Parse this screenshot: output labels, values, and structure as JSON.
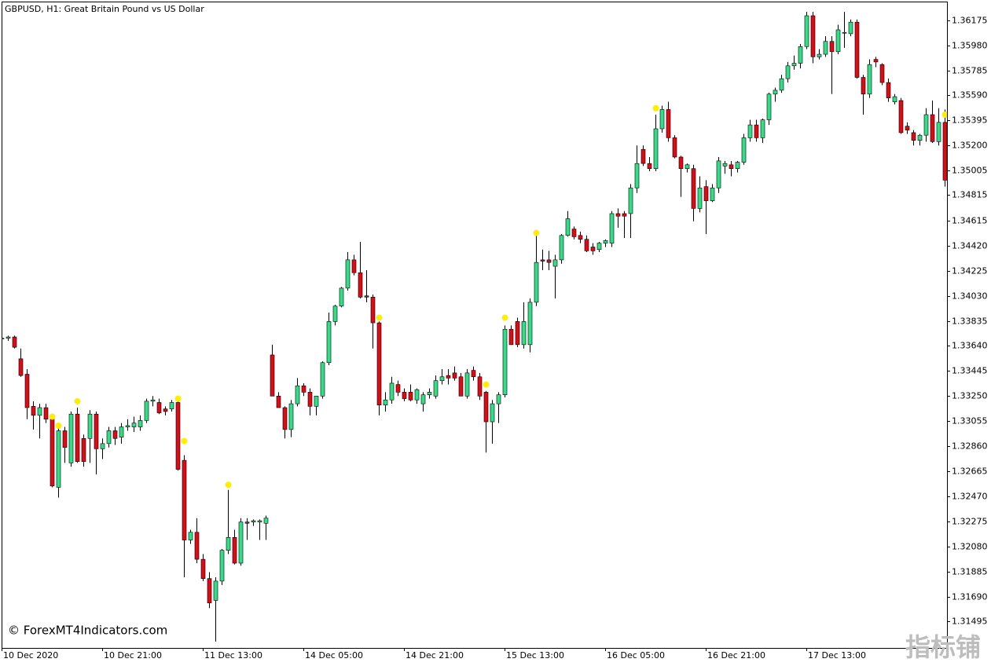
{
  "chart_data": {
    "type": "candlestick",
    "title": "GBPUSD, H1:  Great Britain Pound vs US Dollar",
    "copyright": "© ForexMT4Indicators.com",
    "watermark": "指标铺",
    "up_color": "#3cd98a",
    "down_color": "#d0101a",
    "wick_color": "#000000",
    "marker_color": "#ffee00",
    "ylim": [
      1.3129,
      1.3632
    ],
    "yticks": [
      1.36175,
      {
        "value": 1.3598,
        "label": "1.35980"
      },
      1.35785,
      {
        "value": 1.3559,
        "label": "1.35590"
      },
      1.35395,
      {
        "value": 1.352,
        "label": "1.35200"
      },
      1.35005,
      1.34815,
      1.34615,
      {
        "value": 1.3442,
        "label": "1.34420"
      },
      1.34225,
      {
        "value": 1.3403,
        "label": "1.34030"
      },
      1.33835,
      {
        "value": 1.3364,
        "label": "1.33640"
      },
      1.33445,
      {
        "value": 1.3325,
        "label": "1.33250"
      },
      1.33055,
      {
        "value": 1.3286,
        "label": "1.32860"
      },
      1.32665,
      {
        "value": 1.3247,
        "label": "1.32470"
      },
      1.32275,
      {
        "value": 1.3208,
        "label": "1.32080"
      },
      1.31885,
      {
        "value": 1.3169,
        "label": "1.31690"
      },
      1.31495
    ],
    "categories": [
      "10 Dec 2020",
      null,
      null,
      null,
      null,
      null,
      null,
      null,
      null,
      null,
      null,
      null,
      null,
      null,
      null,
      null,
      "10 Dec 21:00",
      null,
      null,
      null,
      null,
      null,
      null,
      null,
      null,
      null,
      null,
      null,
      null,
      null,
      null,
      null,
      "11 Dec 13:00",
      null,
      null,
      null,
      null,
      null,
      null,
      null,
      null,
      null,
      null,
      null,
      null,
      null,
      null,
      null,
      "14 Dec 05:00",
      null,
      null,
      null,
      null,
      null,
      null,
      null,
      null,
      null,
      null,
      null,
      null,
      null,
      null,
      null,
      "14 Dec 21:00",
      null,
      null,
      null,
      null,
      null,
      null,
      null,
      null,
      null,
      null,
      null,
      null,
      null,
      null,
      null,
      "15 Dec 13:00",
      null,
      null,
      null,
      null,
      null,
      null,
      null,
      null,
      null,
      null,
      null,
      null,
      null,
      null,
      null,
      "16 Dec 05:00",
      null,
      null,
      null,
      null,
      null,
      null,
      null,
      null,
      null,
      null,
      null,
      null,
      null,
      null,
      null,
      "16 Dec 21:00",
      null,
      null,
      null,
      null,
      null,
      null,
      null,
      null,
      null,
      null,
      null,
      null,
      null,
      null,
      null,
      "17 Dec 13:00",
      null,
      null,
      null,
      null,
      null,
      null,
      null,
      null,
      null,
      null,
      null,
      null,
      null,
      null,
      null,
      null,
      null,
      null,
      null,
      null,
      null,
      null
    ],
    "open": [
      1.337,
      1.337,
      1.3371,
      1.3354,
      1.3342,
      1.3317,
      1.331,
      1.3316,
      1.3307,
      1.3254,
      1.3298,
      1.3273,
      1.3311,
      1.3292,
      1.3292,
      1.3311,
      1.3284,
      1.3288,
      1.3298,
      1.3293,
      1.3301,
      1.3301,
      1.3301,
      1.3306,
      1.3321,
      1.332,
      1.3315,
      1.3315,
      1.332,
      1.3275,
      1.3213,
      1.3219,
      1.3198,
      1.3183,
      1.3166,
      1.3181,
      1.3205,
      1.3215,
      1.3195,
      1.3227,
      1.3227,
      1.3227,
      1.3226,
      1.3357,
      1.3325,
      1.3316,
      1.3299,
      1.3319,
      1.3333,
      1.3328,
      1.3317,
      1.3325,
      1.3351,
      1.3383,
      1.3395,
      1.3409,
      1.3431,
      1.3421,
      1.3403,
      1.3402,
      1.3382,
      1.3318,
      1.3322,
      1.3334,
      1.3328,
      1.3328,
      1.3322,
      1.3319,
      1.3326,
      1.3325,
      1.3337,
      1.3341,
      1.3343,
      1.334,
      1.3325,
      1.3345,
      1.334,
      1.3328,
      1.3305,
      1.3319,
      1.3326,
      1.3377,
      1.3383,
      1.3365,
      1.3365,
      1.3398,
      1.3431,
      1.3431,
      1.3426,
      1.3431,
      1.345,
      1.3455,
      1.345,
      1.3447,
      1.3441,
      1.3439,
      1.3444,
      1.3444,
      1.3467,
      1.3467,
      1.3467,
      1.3487,
      1.3517,
      1.3506,
      1.3502,
      1.3533,
      1.3548,
      1.3526,
      1.3511,
      1.3502,
      1.3502,
      1.3471,
      1.3488,
      1.3477,
      1.3487,
      1.3504,
      1.3505,
      1.3502,
      1.3507,
      1.3526,
      1.3536,
      1.3526,
      1.354,
      1.356,
      1.3563,
      1.3572,
      1.3582,
      1.3584,
      1.3597,
      1.3621,
      1.3589,
      1.3591,
      1.3601,
      1.3593,
      1.3608,
      1.3607,
      1.3616,
      1.3573,
      1.356,
      1.3587,
      1.3583,
      1.3569,
      1.3554,
      1.3555,
      1.3535,
      1.353,
      1.3524,
      1.3528,
      1.3544,
      1.3523,
      1.3538
    ],
    "high": [
      1.3371,
      1.3372,
      1.3372,
      1.3362,
      1.3346,
      1.3321,
      1.3319,
      1.3319,
      1.331,
      1.3301,
      1.3301,
      1.3313,
      1.3316,
      1.3295,
      1.3314,
      1.3313,
      1.3292,
      1.3301,
      1.3301,
      1.3304,
      1.3307,
      1.3309,
      1.331,
      1.3323,
      1.3325,
      1.3323,
      1.3317,
      1.3322,
      1.3325,
      1.3279,
      1.3221,
      1.323,
      1.3202,
      1.3188,
      1.3184,
      1.3206,
      1.3252,
      1.3221,
      1.323,
      1.323,
      1.3229,
      1.3229,
      1.3232,
      1.3365,
      1.3328,
      1.3317,
      1.3322,
      1.3339,
      1.3335,
      1.3331,
      1.3325,
      1.3352,
      1.339,
      1.3396,
      1.341,
      1.3437,
      1.3435,
      1.3445,
      1.3423,
      1.3404,
      1.3383,
      1.3328,
      1.334,
      1.3337,
      1.3331,
      1.3334,
      1.3331,
      1.3328,
      1.3331,
      1.3341,
      1.3346,
      1.3346,
      1.3348,
      1.3343,
      1.3346,
      1.3348,
      1.3343,
      1.3329,
      1.3322,
      1.3328,
      1.338,
      1.338,
      1.3386,
      1.3398,
      1.3401,
      1.345,
      1.3439,
      1.3438,
      1.3435,
      1.3451,
      1.3469,
      1.3457,
      1.3453,
      1.345,
      1.3444,
      1.3445,
      1.3447,
      1.3469,
      1.3471,
      1.3469,
      1.349,
      1.352,
      1.352,
      1.3511,
      1.3544,
      1.3551,
      1.3554,
      1.3528,
      1.3512,
      1.3506,
      1.3505,
      1.3496,
      1.3493,
      1.349,
      1.3511,
      1.3508,
      1.3508,
      1.3508,
      1.3529,
      1.354,
      1.354,
      1.3541,
      1.3561,
      1.3565,
      1.3575,
      1.3585,
      1.359,
      1.3599,
      1.3624,
      1.3624,
      1.3595,
      1.3605,
      1.3605,
      1.3614,
      1.3624,
      1.3618,
      1.3618,
      1.3575,
      1.3587,
      1.3589,
      1.3584,
      1.3572,
      1.356,
      1.3557,
      1.3538,
      1.3532,
      1.3529,
      1.3549,
      1.3555,
      1.3549,
      1.3548
    ],
    "low": [
      1.3368,
      1.3368,
      1.3362,
      1.334,
      1.3307,
      1.3299,
      1.3292,
      1.3304,
      1.3254,
      1.3246,
      1.3273,
      1.327,
      1.3273,
      1.327,
      1.3273,
      1.3264,
      1.3276,
      1.3285,
      1.3287,
      1.3288,
      1.3298,
      1.3297,
      1.3298,
      1.3304,
      1.3317,
      1.3311,
      1.331,
      1.3313,
      1.3267,
      1.3184,
      1.321,
      1.3195,
      1.3181,
      1.316,
      1.3134,
      1.3178,
      1.3202,
      1.3194,
      1.3193,
      1.3213,
      1.3224,
      1.3213,
      1.3213,
      1.3325,
      1.3316,
      1.3292,
      1.3293,
      1.3317,
      1.3325,
      1.331,
      1.331,
      1.3323,
      1.3349,
      1.338,
      1.3394,
      1.3407,
      1.3419,
      1.3401,
      1.3398,
      1.3362,
      1.331,
      1.3313,
      1.3319,
      1.3325,
      1.3321,
      1.3321,
      1.3319,
      1.3313,
      1.3323,
      1.3323,
      1.3334,
      1.3334,
      1.3337,
      1.3325,
      1.3323,
      1.3337,
      1.3322,
      1.3281,
      1.3288,
      1.3304,
      1.3324,
      1.3365,
      1.3363,
      1.3362,
      1.3359,
      1.3395,
      1.3423,
      1.3423,
      1.3401,
      1.3428,
      1.3449,
      1.3447,
      1.3444,
      1.3437,
      1.3435,
      1.3437,
      1.3441,
      1.3441,
      1.3456,
      1.3448,
      1.3448,
      1.3483,
      1.3504,
      1.35,
      1.35,
      1.353,
      1.3523,
      1.351,
      1.348,
      1.3499,
      1.3461,
      1.3468,
      1.3451,
      1.3476,
      1.3483,
      1.3498,
      1.3496,
      1.3499,
      1.3505,
      1.3523,
      1.3523,
      1.3522,
      1.3536,
      1.3554,
      1.3561,
      1.3569,
      1.3579,
      1.358,
      1.3595,
      1.3584,
      1.3587,
      1.3589,
      1.356,
      1.3591,
      1.3596,
      1.3605,
      1.3572,
      1.3544,
      1.3557,
      1.3581,
      1.3567,
      1.3554,
      1.3552,
      1.3529,
      1.3529,
      1.352,
      1.352,
      1.3523,
      1.3522,
      1.352,
      1.3488
    ],
    "close": [
      1.337,
      1.3371,
      1.3363,
      1.3341,
      1.3316,
      1.331,
      1.3316,
      1.3307,
      1.3255,
      1.3298,
      1.3285,
      1.3311,
      1.3274,
      1.3274,
      1.3311,
      1.3284,
      1.3288,
      1.3298,
      1.3292,
      1.3301,
      1.3302,
      1.3304,
      1.3306,
      1.3321,
      1.3322,
      1.3312,
      1.3313,
      1.332,
      1.3268,
      1.3213,
      1.3219,
      1.3198,
      1.3183,
      1.3164,
      1.3181,
      1.3205,
      1.3215,
      1.3195,
      1.3227,
      1.3226,
      1.3228,
      1.3228,
      1.323,
      1.3325,
      1.3316,
      1.3299,
      1.3319,
      1.3333,
      1.3328,
      1.3317,
      1.3325,
      1.3351,
      1.3383,
      1.3395,
      1.3409,
      1.3431,
      1.3421,
      1.3402,
      1.3402,
      1.3382,
      1.3318,
      1.3322,
      1.3335,
      1.3328,
      1.3323,
      1.3322,
      1.333,
      1.3326,
      1.3328,
      1.3337,
      1.334,
      1.3339,
      1.3339,
      1.3325,
      1.3343,
      1.334,
      1.3325,
      1.3305,
      1.3319,
      1.3326,
      1.3377,
      1.3365,
      1.3365,
      1.3383,
      1.3398,
      1.3429,
      1.343,
      1.3429,
      1.3431,
      1.345,
      1.3463,
      1.3449,
      1.3447,
      1.3438,
      1.3438,
      1.3444,
      1.3446,
      1.3467,
      1.3465,
      1.3465,
      1.3487,
      1.3506,
      1.3506,
      1.3502,
      1.3533,
      1.3548,
      1.3526,
      1.3511,
      1.3502,
      1.3505,
      1.3471,
      1.3487,
      1.3477,
      1.3487,
      1.3508,
      1.3506,
      1.3502,
      1.3507,
      1.3526,
      1.3536,
      1.3526,
      1.354,
      1.356,
      1.3563,
      1.3572,
      1.3582,
      1.3584,
      1.3597,
      1.3621,
      1.3589,
      1.3591,
      1.3601,
      1.3593,
      1.361,
      1.3608,
      1.3616,
      1.3573,
      1.356,
      1.3583,
      1.3585,
      1.3569,
      1.3557,
      1.3558,
      1.353,
      1.3532,
      1.3524,
      1.3528,
      1.3544,
      1.3523,
      1.3538,
      1.3493
    ],
    "markers": [
      null,
      null,
      null,
      null,
      null,
      null,
      null,
      null,
      1.3309,
      1.3302,
      null,
      null,
      1.3321,
      null,
      null,
      null,
      null,
      null,
      null,
      null,
      null,
      null,
      null,
      null,
      null,
      null,
      null,
      null,
      1.3323,
      1.329,
      null,
      null,
      null,
      null,
      null,
      null,
      1.3256,
      null,
      null,
      null,
      null,
      null,
      null,
      null,
      null,
      null,
      null,
      null,
      null,
      null,
      null,
      null,
      null,
      null,
      null,
      null,
      null,
      null,
      null,
      null,
      1.3386,
      null,
      null,
      null,
      null,
      null,
      null,
      null,
      null,
      null,
      null,
      null,
      null,
      null,
      null,
      null,
      null,
      1.3334,
      null,
      null,
      1.3386,
      null,
      null,
      null,
      null,
      1.3452,
      null,
      null,
      null,
      null,
      null,
      null,
      null,
      null,
      null,
      null,
      null,
      null,
      null,
      null,
      null,
      null,
      null,
      null,
      1.3549,
      null,
      null,
      null,
      null,
      null,
      null,
      null,
      null,
      null,
      null,
      null,
      null,
      null,
      null,
      null,
      null,
      null,
      null,
      null,
      null,
      null,
      null,
      null,
      null,
      null,
      null,
      null,
      null,
      null,
      null,
      null,
      null,
      null,
      null,
      null,
      null,
      null,
      null,
      null,
      null,
      null,
      null,
      null,
      null,
      null,
      1.3544
    ]
  }
}
